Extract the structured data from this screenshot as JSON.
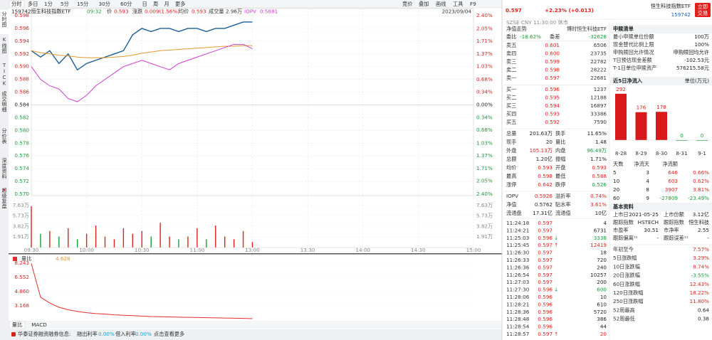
{
  "toolbar": {
    "tabs": [
      "分时",
      "多日",
      "1分",
      "5分",
      "15分",
      "30分",
      "60分",
      "日",
      "周",
      "月",
      "更多"
    ],
    "tools": [
      "竞价",
      "叠加",
      "画线",
      "工具",
      "F9"
    ]
  },
  "side_tabs": [
    "分时图",
    "K线图",
    "TICK",
    "成交明细",
    "分价表",
    "深度资料",
    "超级复盘"
  ],
  "chart_header": {
    "code_name": "159742恒生科技指数ETF",
    "time": "09:32",
    "price": "0.593",
    "change_label": "涨跌",
    "change": "0.009(1.56%)",
    "avg": "0.593",
    "volume_label": "成交量",
    "volume": "2.96万",
    "iopv": "0.5881",
    "date": "2023/09/04"
  },
  "chart_data": [
    {
      "type": "line",
      "x": [
        "09:30",
        "09:35",
        "09:40",
        "09:45",
        "09:50",
        "09:55",
        "10:00",
        "10:05",
        "10:10",
        "10:15",
        "10:20",
        "10:25",
        "10:30",
        "10:35",
        "10:40",
        "10:45",
        "10:50",
        "10:55",
        "11:00",
        "11:05",
        "11:10",
        "11:15",
        "11:20",
        "11:25",
        "11:30"
      ],
      "series": [
        {
          "name": "价",
          "color": "#1f5d96",
          "values": [
            0.5925,
            0.5915,
            0.5925,
            0.5905,
            0.592,
            0.5895,
            0.5905,
            0.591,
            0.5915,
            0.592,
            0.5925,
            0.595,
            0.596,
            0.5955,
            0.596,
            0.596,
            0.5955,
            0.596,
            0.596,
            0.5955,
            0.596,
            0.596,
            0.5965,
            0.597,
            0.597
          ]
        },
        {
          "name": "均价",
          "color": "#e39a2f",
          "values": [
            0.5925,
            0.5922,
            0.592,
            0.5918,
            0.5917,
            0.5915,
            0.5914,
            0.5914,
            0.5914,
            0.5915,
            0.5916,
            0.5918,
            0.5921,
            0.5923,
            0.5925,
            0.5926,
            0.5927,
            0.5928,
            0.5929,
            0.593,
            0.5931,
            0.5932,
            0.5932,
            0.5933,
            0.5933
          ]
        },
        {
          "name": "IOPV",
          "color": "#d03cd3",
          "values": [
            0.59,
            0.588,
            0.587,
            0.5865,
            0.585,
            0.5845,
            0.5855,
            0.587,
            0.588,
            0.589,
            0.59,
            0.5905,
            0.591,
            0.5905,
            0.59,
            0.5895,
            0.5905,
            0.591,
            0.5915,
            0.592,
            0.5925,
            0.593,
            0.5935,
            0.5935,
            0.5928
          ]
        }
      ],
      "ylim": [
        0.57,
        0.598
      ],
      "yticks": [
        0.598,
        0.596,
        0.594,
        0.592,
        {
          "value": 0.59,
          "label": "0.590"
        },
        0.588,
        0.586,
        0.584,
        0.582,
        {
          "value": 0.58,
          "label": "0.580"
        },
        0.578,
        0.576,
        0.574,
        0.572,
        {
          "value": 0.57,
          "label": "0.570"
        }
      ],
      "y2lim": [
        -2.4,
        2.4
      ],
      "y2ticks": [
        {
          "value": 2.4,
          "label": "2.40%"
        },
        {
          "value": 2.05,
          "label": "2.05%"
        },
        {
          "value": 1.71,
          "label": "1.71%"
        },
        {
          "value": 1.37,
          "label": "1.37%"
        },
        {
          "value": 1.03,
          "label": "1.03%"
        },
        {
          "value": 0.68,
          "label": "0.68%"
        },
        {
          "value": 0.34,
          "label": "0.34%"
        },
        {
          "value": 0,
          "label": "0.00%"
        },
        {
          "value": -0.34,
          "label": "0.34%"
        },
        {
          "value": -0.68,
          "label": "0.68%"
        },
        {
          "value": -1.03,
          "label": "1.03%"
        },
        {
          "value": -1.37,
          "label": "1.37%"
        },
        {
          "value": -1.71,
          "label": "1.71%"
        },
        {
          "value": -2.05,
          "label": "2.05%"
        },
        {
          "value": -2.4,
          "label": "2.40%"
        }
      ],
      "xticks": [
        "09:30",
        "10:00",
        "10:30",
        "11:00",
        "13:00",
        "13:30",
        "14:00",
        "14:30",
        "15:00"
      ],
      "grid": true
    },
    {
      "type": "bar",
      "x": [
        "09:30",
        "09:35",
        "09:40",
        "09:45",
        "09:50",
        "09:55",
        "10:00",
        "10:05",
        "10:10",
        "10:15",
        "10:20",
        "10:25",
        "10:30",
        "10:35",
        "10:40",
        "10:45",
        "10:50",
        "10:55",
        "11:00",
        "11:05",
        "11:10",
        "11:15",
        "11:20",
        "11:25",
        "11:30"
      ],
      "values": [
        7.5,
        2.5,
        3,
        2,
        3.5,
        1.5,
        2.5,
        4,
        2,
        1.5,
        3.5,
        2.5,
        3,
        2,
        4.5,
        2,
        1.5,
        2,
        3.5,
        1.5,
        4,
        2,
        1.5,
        3,
        1
      ],
      "ylim": [
        0,
        7.63
      ],
      "yticks": [
        {
          "value": 7.63,
          "label": "7.63万"
        },
        {
          "value": 5.73,
          "label": "5.73万"
        },
        {
          "value": 3.82,
          "label": "3.82万"
        },
        {
          "value": 1.91,
          "label": "1.91万"
        }
      ]
    },
    {
      "type": "line",
      "title": "量比",
      "current": "4.628",
      "x": [
        "09:30",
        "09:35",
        "09:40",
        "09:45",
        "09:50",
        "09:55",
        "10:00",
        "10:05",
        "10:10",
        "10:15",
        "10:20",
        "10:25",
        "10:30",
        "10:35",
        "10:40",
        "10:45",
        "10:50",
        "10:55",
        "11:00",
        "11:05",
        "11:10",
        "11:15",
        "11:20",
        "11:25",
        "11:30"
      ],
      "series": [
        {
          "color": "#e0302c",
          "values": [
            8.2,
            4.2,
            3.5,
            3,
            2.7,
            2.5,
            2.35,
            2.25,
            2.2,
            2.1,
            2.05,
            2,
            1.95,
            1.9,
            1.88,
            1.85,
            1.82,
            1.8,
            1.78,
            1.76,
            1.74,
            1.72,
            1.7,
            1.68,
            1.66
          ]
        }
      ],
      "ylim": [
        1.476,
        8.243
      ],
      "yticks": [
        8.243,
        6.552,
        {
          "value": 4.86,
          "label": "4.860"
        },
        3.168
      ]
    },
    {
      "type": "bar",
      "title": "近5日净流入",
      "unit": "单位(万元)",
      "categories": [
        "8-28",
        "8-29",
        "8-30",
        "8-31",
        "9-1"
      ],
      "values": [
        292,
        176,
        178,
        0,
        0
      ],
      "ylim": [
        0,
        300
      ],
      "color": "#d7191c"
    }
  ],
  "indicator_tabs": [
    "量比",
    "MACD"
  ],
  "status_bar": {
    "text": "华泰证券融资融券信息:",
    "items": [
      [
        "融出利率",
        "0.00%"
      ],
      [
        "借入利率",
        "0.00%"
      ]
    ],
    "link": "点击查看更多"
  },
  "quote": {
    "price": "0.597",
    "change": "+2.23% (+0.013)",
    "name": "恒生科技指数ETF",
    "code": "159742",
    "button": [
      "立即",
      "交易"
    ],
    "market": "SZSE  CNY  11:30:00  休市"
  },
  "order_book": {
    "header": [
      "净值走势",
      "博时恒生科技ETF"
    ],
    "ratio": [
      "委比",
      "-18.62%",
      "委差",
      "-32628"
    ],
    "asks": [
      [
        "卖五",
        "0.601",
        "6506"
      ],
      [
        "卖四",
        "0.600",
        "23735"
      ],
      [
        "卖三",
        "0.599",
        "22782"
      ],
      [
        "卖二",
        "0.598",
        "28222"
      ],
      [
        "卖一",
        "0.597",
        "22681"
      ]
    ],
    "bids": [
      [
        "买一",
        "0.596",
        "1237"
      ],
      [
        "买二",
        "0.595",
        "12188"
      ],
      [
        "买三",
        "0.594",
        "16897"
      ],
      [
        "买四",
        "0.593",
        "33386"
      ],
      [
        "买五",
        "0.592",
        "7590"
      ]
    ]
  },
  "stats": [
    [
      "总量",
      "201.63万",
      "换手",
      "11.65%"
    ],
    [
      "现手",
      "20",
      "量比",
      "1.48"
    ],
    [
      "外盘",
      "105.13万",
      "内盘",
      "96.49万"
    ],
    [
      "总额",
      "1.20亿",
      "振幅",
      "1.71%"
    ],
    [
      "均价",
      "0.593",
      "开盘",
      "0.593"
    ],
    [
      "最高",
      "0.598",
      "最低",
      "0.588"
    ],
    [
      "涨停",
      "0.642",
      "跌停",
      "0.526"
    ]
  ],
  "etf_stats": [
    [
      "IOPV",
      "0.5926",
      "溢折率",
      "0.74%"
    ],
    [
      "净值",
      "0.5762",
      "贴水率",
      "3.61%"
    ],
    [
      "流通盘",
      "17.31亿",
      "流通值",
      "10亿"
    ]
  ],
  "ticks": [
    {
      "time": "11:24:18",
      "price": "0.597",
      "vol": "4"
    },
    {
      "time": "11:24:21",
      "price": "0.597",
      "vol": "6731"
    },
    {
      "time": "11:25:03",
      "price": "0.596",
      "arrow": "↓",
      "vol": "3338"
    },
    {
      "time": "11:25:45",
      "price": "0.597",
      "arrow": "↑",
      "vol": "12419"
    },
    {
      "time": "11:26:30",
      "price": "0.597",
      "vol": "18"
    },
    {
      "time": "11:26:33",
      "price": "0.597",
      "vol": "720"
    },
    {
      "time": "11:26:36",
      "price": "0.597",
      "vol": "240"
    },
    {
      "time": "11:26:54",
      "price": "0.597",
      "vol": "10257"
    },
    {
      "time": "11:27:03",
      "price": "0.597",
      "vol": "200"
    },
    {
      "time": "11:27:30",
      "price": "0.596",
      "arrow": "↓",
      "vol": "600"
    },
    {
      "time": "11:28:06",
      "price": "0.596",
      "vol": "10"
    },
    {
      "time": "11:28:21",
      "price": "0.596",
      "vol": "610"
    },
    {
      "time": "11:28:36",
      "price": "0.596",
      "vol": "5720"
    },
    {
      "time": "11:28:48",
      "price": "0.596",
      "vol": "386"
    },
    {
      "time": "11:28:54",
      "price": "0.596",
      "vol": "44"
    },
    {
      "time": "11:28:57",
      "price": "0.597",
      "arrow": "↑",
      "vol": "20"
    }
  ],
  "creation_redemption": {
    "title": "申赎清单",
    "rows": [
      [
        "最小申赎单位份额",
        "100万"
      ],
      [
        "现金替代比例上限",
        "100%"
      ],
      [
        "申购赎回允许情况",
        "申购赎回均允许"
      ],
      [
        "T日预估现金差额",
        "-102.53元"
      ],
      [
        "T-1日单位申赎资产",
        "576215.58元"
      ]
    ]
  },
  "flow_table": {
    "header": [
      "天数",
      "净流天",
      "净流额"
    ],
    "rows": [
      [
        "5",
        "3",
        "646",
        "0.66%"
      ],
      [
        "10",
        "4",
        "603",
        "0.62%"
      ],
      [
        "20",
        "8",
        "3907",
        "3.81%"
      ],
      [
        "60",
        "9",
        "-27809",
        "-23.49%"
      ]
    ]
  },
  "basic_info": {
    "title": "基本资料",
    "rows": [
      [
        "上市日",
        "2021-05-25",
        "上市份额",
        "3.12亿"
      ],
      [
        "跟踪指数",
        "HSTECH",
        "跟踪指数",
        "恒生科技"
      ],
      [
        "市盈率",
        "30.51",
        "市净率",
        "2.55"
      ],
      [
        "跟踪偏离¹¹",
        "-",
        "跟踪误差¹¹",
        "-"
      ]
    ]
  },
  "performance": [
    [
      "年初至今",
      "7.57%"
    ],
    [
      "5日涨跌幅",
      "3.29%"
    ],
    [
      "10日涨跌幅",
      "8.74%"
    ],
    [
      "20日涨跌幅",
      "-3.55%"
    ],
    [
      "60日涨跌幅",
      "12.43%"
    ],
    [
      "120日涨跌幅",
      "18.22%"
    ],
    [
      "250日涨跌幅",
      "11.80%"
    ],
    [
      "52周最高",
      "0.64"
    ],
    [
      "52周最低",
      "0.38"
    ]
  ]
}
